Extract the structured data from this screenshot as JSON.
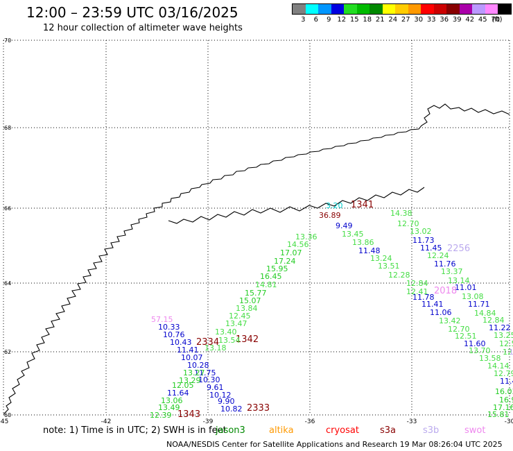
{
  "title": "12:00 – 23:59 UTC 03/16/2025",
  "subtitle": "12 hour collection of altimeter wave heights",
  "color_scale": {
    "unit": "(ft)",
    "bins": [
      {
        "label": "3",
        "color": "#808080"
      },
      {
        "label": "6",
        "color": "#00ffff"
      },
      {
        "label": "9",
        "color": "#0096ff"
      },
      {
        "label": "12",
        "color": "#0000e0"
      },
      {
        "label": "15",
        "color": "#22dd22"
      },
      {
        "label": "18",
        "color": "#00bb00"
      },
      {
        "label": "21",
        "color": "#008800"
      },
      {
        "label": "24",
        "color": "#ffff00"
      },
      {
        "label": "27",
        "color": "#ffcc00"
      },
      {
        "label": "30",
        "color": "#ff9900"
      },
      {
        "label": "33",
        "color": "#ff0000"
      },
      {
        "label": "36",
        "color": "#cc0000"
      },
      {
        "label": "39",
        "color": "#880000"
      },
      {
        "label": "42",
        "color": "#aa00aa"
      },
      {
        "label": "45",
        "color": "#bb99ff"
      },
      {
        "label": "70",
        "color": "#ff88ff"
      },
      {
        "label": "",
        "color": "#000000"
      }
    ]
  },
  "axes": {
    "lat_labels": [
      "70",
      "68",
      "66",
      "64",
      "62",
      "60"
    ],
    "lon_labels": [
      "-45",
      "-42",
      "-39",
      "-36",
      "-33",
      "-30"
    ]
  },
  "observations": [
    {
      "text": "57.15",
      "color": "#ee88ee"
    },
    {
      "text": "10.33",
      "color": "#0000cc"
    },
    {
      "text": "10.76",
      "color": "#0000cc"
    },
    {
      "text": "10.43",
      "color": "#0000cc"
    },
    {
      "text": "11.41",
      "color": "#0000cc"
    },
    {
      "text": "10.07",
      "color": "#0000cc"
    },
    {
      "text": "10.28",
      "color": "#0000cc"
    },
    {
      "text": "11.75",
      "color": "#0000cc"
    },
    {
      "text": "13.27",
      "color": "#22cc22"
    },
    {
      "text": "13.29",
      "color": "#22cc22"
    },
    {
      "text": "12.05",
      "color": "#22cc22"
    },
    {
      "text": "11.64",
      "color": "#0000cc"
    },
    {
      "text": "13.06",
      "color": "#22cc22"
    },
    {
      "text": "13.49",
      "color": "#22cc22"
    },
    {
      "text": "12.39",
      "color": "#22cc22"
    },
    {
      "text": "1343",
      "color": "#880000"
    },
    {
      "text": "10.30",
      "color": "#0000cc"
    },
    {
      "text": "9.61",
      "color": "#0000cc"
    },
    {
      "text": "10.12",
      "color": "#0000cc"
    },
    {
      "text": "9.90",
      "color": "#0000cc"
    },
    {
      "text": "10.82",
      "color": "#0000cc"
    },
    {
      "text": "2333",
      "color": "#880000"
    },
    {
      "text": "2334",
      "color": "#880000"
    },
    {
      "text": "1342",
      "color": "#880000"
    },
    {
      "text": "13.18",
      "color": "#44dd44"
    },
    {
      "text": "13.54",
      "color": "#44dd44"
    },
    {
      "text": "13.40",
      "color": "#44dd44"
    },
    {
      "text": "13.47",
      "color": "#44dd44"
    },
    {
      "text": "12.45",
      "color": "#44dd44"
    },
    {
      "text": "13.84",
      "color": "#44dd44"
    },
    {
      "text": "15.07",
      "color": "#22cc22"
    },
    {
      "text": "15.77",
      "color": "#22cc22"
    },
    {
      "text": "14.81",
      "color": "#44dd44"
    },
    {
      "text": "16.45",
      "color": "#22cc22"
    },
    {
      "text": "15.95",
      "color": "#22cc22"
    },
    {
      "text": "17.24",
      "color": "#22cc22"
    },
    {
      "text": "17.07",
      "color": "#22cc22"
    },
    {
      "text": "14.56",
      "color": "#44dd44"
    },
    {
      "text": "13.36",
      "color": "#44dd44"
    },
    {
      "text": "3.20",
      "color": "#00cccc"
    },
    {
      "text": "1341",
      "color": "#880000"
    },
    {
      "text": "36.89",
      "color": "#880000"
    },
    {
      "text": "9.49",
      "color": "#0000cc"
    },
    {
      "text": "13.45",
      "color": "#44dd44"
    },
    {
      "text": "13.86",
      "color": "#44dd44"
    },
    {
      "text": "11.48",
      "color": "#0000cc"
    },
    {
      "text": "13.24",
      "color": "#44dd44"
    },
    {
      "text": "13.51",
      "color": "#44dd44"
    },
    {
      "text": "12.28",
      "color": "#44dd44"
    },
    {
      "text": "12.84",
      "color": "#44dd44"
    },
    {
      "text": "12.41",
      "color": "#44dd44"
    },
    {
      "text": "11.78",
      "color": "#0000cc"
    },
    {
      "text": "11.41",
      "color": "#0000cc"
    },
    {
      "text": "11.06",
      "color": "#0000cc"
    },
    {
      "text": "13.42",
      "color": "#44dd44"
    },
    {
      "text": "12.70",
      "color": "#44dd44"
    },
    {
      "text": "12.51",
      "color": "#44dd44"
    },
    {
      "text": "11.60",
      "color": "#0000cc"
    },
    {
      "text": "13.70",
      "color": "#44dd44"
    },
    {
      "text": "13.58",
      "color": "#44dd44"
    },
    {
      "text": "14.14",
      "color": "#44dd44"
    },
    {
      "text": "12.79",
      "color": "#44dd44"
    },
    {
      "text": "11.4",
      "color": "#0000cc"
    },
    {
      "text": "16.03",
      "color": "#22cc22"
    },
    {
      "text": "16.95",
      "color": "#22cc22"
    },
    {
      "text": "17.16",
      "color": "#22cc22"
    },
    {
      "text": "15.81",
      "color": "#22cc22"
    },
    {
      "text": "14.38",
      "color": "#44dd44"
    },
    {
      "text": "12.70",
      "color": "#44dd44"
    },
    {
      "text": "13.02",
      "color": "#44dd44"
    },
    {
      "text": "11.73",
      "color": "#0000cc"
    },
    {
      "text": "11.45",
      "color": "#0000cc"
    },
    {
      "text": "2256",
      "color": "#bbaaee"
    },
    {
      "text": "12.24",
      "color": "#44dd44"
    },
    {
      "text": "11.76",
      "color": "#0000cc"
    },
    {
      "text": "13.37",
      "color": "#44dd44"
    },
    {
      "text": "13.14",
      "color": "#44dd44"
    },
    {
      "text": "2018",
      "color": "#ee88ee"
    },
    {
      "text": "11.01",
      "color": "#0000cc"
    },
    {
      "text": "13.08",
      "color": "#44dd44"
    },
    {
      "text": "11.71",
      "color": "#0000cc"
    },
    {
      "text": "14.84",
      "color": "#44dd44"
    },
    {
      "text": "12.84",
      "color": "#44dd44"
    },
    {
      "text": "11.22",
      "color": "#0000cc"
    },
    {
      "text": "13.25",
      "color": "#44dd44"
    },
    {
      "text": "12.5",
      "color": "#44dd44"
    },
    {
      "text": "12",
      "color": "#44dd44"
    },
    {
      "text": "1",
      "color": "#bbaaee"
    }
  ],
  "note": "note:  1) Time is in UTC;  2) SWH is in feet",
  "satellites": [
    {
      "name": "jason3",
      "color": "#008800"
    },
    {
      "name": "altika",
      "color": "#ff9900"
    },
    {
      "name": "cryosat",
      "color": "#ff0000"
    },
    {
      "name": "s3a",
      "color": "#880000"
    },
    {
      "name": "s3b",
      "color": "#bbaaee"
    },
    {
      "name": "swot",
      "color": "#ee88ee"
    }
  ],
  "footer": "NOAA/NESDIS Center for Satellite Applications and Research    19 Mar 08:26:04 UTC 2025"
}
